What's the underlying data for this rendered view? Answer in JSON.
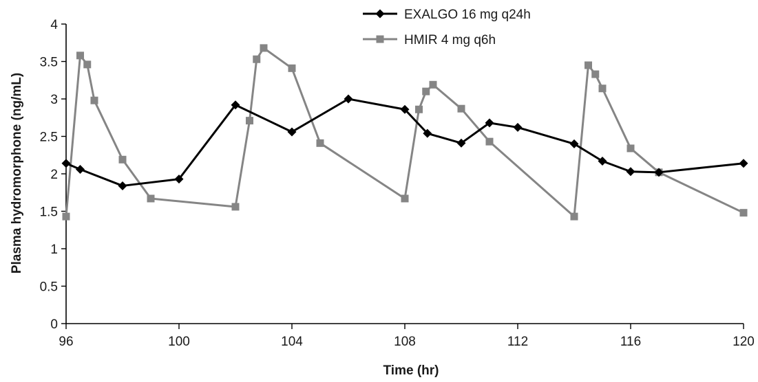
{
  "chart_data": {
    "type": "line",
    "title": "",
    "xlabel": "Time (hr)",
    "ylabel": "Plasma hydromorphone (ng/mL)",
    "xlim": [
      96,
      120
    ],
    "ylim": [
      0,
      4
    ],
    "xticks": [
      96,
      100,
      104,
      108,
      112,
      116,
      120
    ],
    "yticks": [
      0,
      0.5,
      1,
      1.5,
      2,
      2.5,
      3,
      3.5,
      4
    ],
    "ytick_labels": [
      "0",
      "0.5",
      "1",
      "1.5",
      "2",
      "2.5",
      "3",
      "3.5",
      "4"
    ],
    "grid": false,
    "legend_position": "top-right",
    "series": [
      {
        "name": "EXALGO 16 mg q24h",
        "color": "#000000",
        "marker": "diamond",
        "points": [
          [
            96,
            2.14
          ],
          [
            96.5,
            2.06
          ],
          [
            98,
            1.84
          ],
          [
            100,
            1.93
          ],
          [
            102,
            2.92
          ],
          [
            104,
            2.56
          ],
          [
            106,
            3.0
          ],
          [
            108,
            2.86
          ],
          [
            108.8,
            2.54
          ],
          [
            110,
            2.41
          ],
          [
            111,
            2.68
          ],
          [
            112,
            2.62
          ],
          [
            114,
            2.4
          ],
          [
            115,
            2.17
          ],
          [
            116,
            2.03
          ],
          [
            117,
            2.02
          ],
          [
            120,
            2.14
          ]
        ]
      },
      {
        "name": "HMIR 4 mg q6h",
        "color": "#858585",
        "marker": "square",
        "points": [
          [
            96,
            1.43
          ],
          [
            96.5,
            3.58
          ],
          [
            96.75,
            3.46
          ],
          [
            97,
            2.98
          ],
          [
            98,
            2.19
          ],
          [
            99,
            1.67
          ],
          [
            102,
            1.56
          ],
          [
            102.5,
            2.71
          ],
          [
            102.75,
            3.53
          ],
          [
            103,
            3.68
          ],
          [
            104,
            3.41
          ],
          [
            105,
            2.41
          ],
          [
            108,
            1.67
          ],
          [
            108.5,
            2.86
          ],
          [
            108.75,
            3.1
          ],
          [
            109,
            3.19
          ],
          [
            110,
            2.87
          ],
          [
            111,
            2.43
          ],
          [
            114,
            1.43
          ],
          [
            114.5,
            3.45
          ],
          [
            114.75,
            3.33
          ],
          [
            115,
            3.14
          ],
          [
            116,
            2.34
          ],
          [
            117,
            2.02
          ],
          [
            120,
            1.48
          ]
        ]
      }
    ]
  }
}
